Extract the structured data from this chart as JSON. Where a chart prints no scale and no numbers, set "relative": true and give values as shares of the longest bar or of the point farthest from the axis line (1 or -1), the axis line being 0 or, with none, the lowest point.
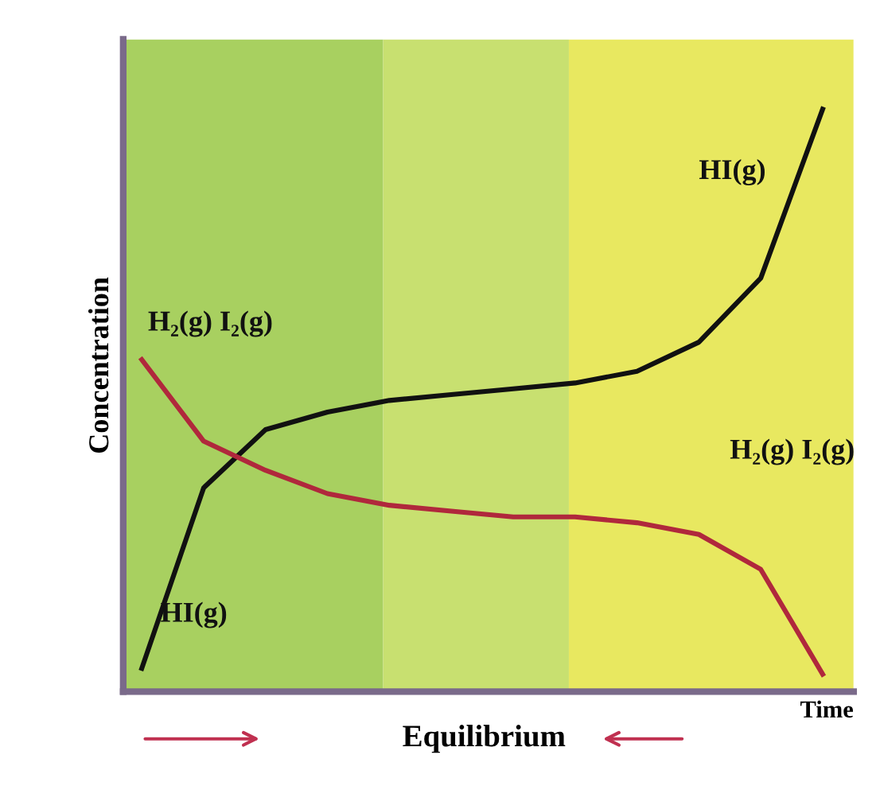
{
  "chart_data": {
    "type": "line",
    "relative": true,
    "ylabel": "Concentration",
    "xlabel": "Time",
    "categories": [
      null,
      null,
      null,
      null,
      null,
      null,
      null,
      null,
      null,
      null,
      null,
      null
    ],
    "series": [
      {
        "name": "HI(g)",
        "color": "#111111",
        "values": [
          0.04,
          0.35,
          0.45,
          0.48,
          0.5,
          0.51,
          0.52,
          0.53,
          0.55,
          0.6,
          0.71,
          1.0
        ]
      },
      {
        "name": "H₂(g) I₂(g)",
        "color": "#b0283c",
        "values": [
          0.57,
          0.43,
          0.38,
          0.34,
          0.32,
          0.31,
          0.3,
          0.3,
          0.29,
          0.27,
          0.21,
          0.03
        ]
      }
    ],
    "annotations": [
      "H₂(g) I₂(g)",
      "HI(g)",
      "Equilibrium"
    ],
    "legend": false,
    "marker": "none",
    "line_style": "solid"
  }
}
